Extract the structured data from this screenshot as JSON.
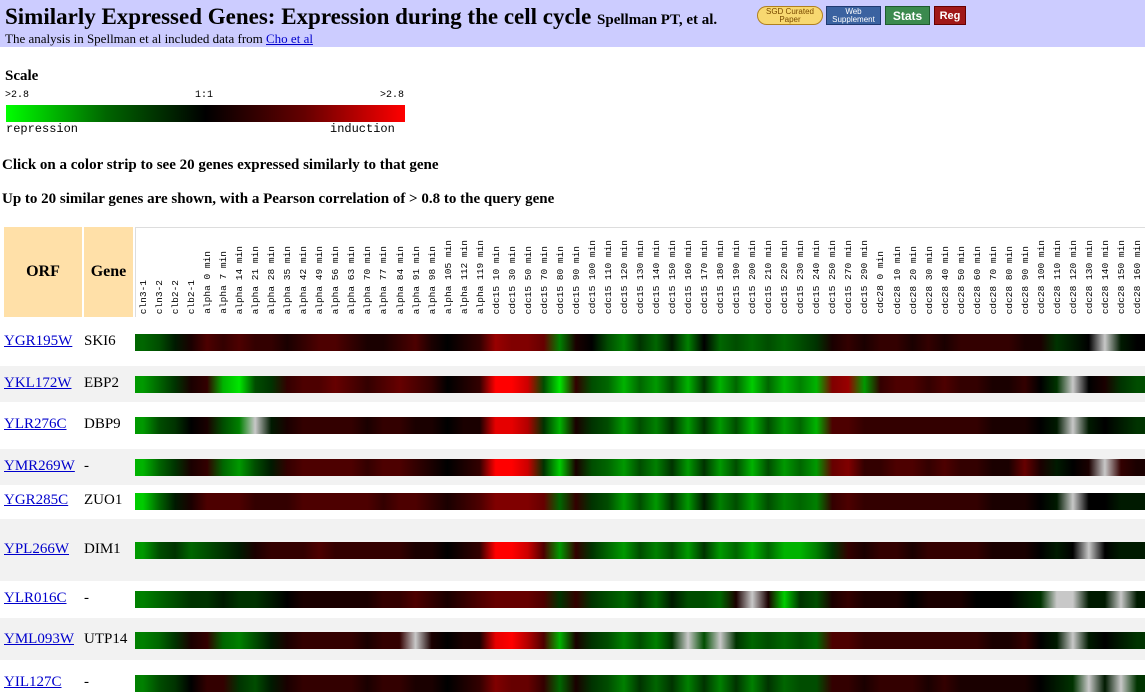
{
  "banner": {
    "title": "Similarly Expressed Genes: Expression during the cell cycle",
    "citation": "Spellman PT, et al.",
    "note_prefix": "The analysis in Spellman et al included data from",
    "note_link": "Cho et al",
    "buttons": {
      "sgd_line1": "SGD Curated",
      "sgd_line2": "Paper",
      "web_line1": "Web",
      "web_line2": "Supplement",
      "stats": "Stats",
      "reg": "Reg"
    }
  },
  "scale": {
    "title": "Scale",
    "left_value": ">2.8",
    "mid_value": "1:1",
    "right_value": ">2.8",
    "left_word": "repression",
    "right_word": "induction",
    "colors": {
      "repression": "#00ff00",
      "neutral": "#000000",
      "induction": "#ff0000"
    }
  },
  "instructions": [
    "Click on a color strip to see 20 genes expressed similarly to that gene",
    "Up to 20 similar genes are shown, with a Pearson correlation of > 0.8 to the query gene"
  ],
  "table": {
    "orf_header": "ORF",
    "gene_header": "Gene",
    "columns": [
      "cln3-1",
      "cln3-2",
      "clb2-2",
      "clb2-1",
      "alpha 0 min",
      "alpha 7 min",
      "alpha 14 min",
      "alpha 21 min",
      "alpha 28 min",
      "alpha 35 min",
      "alpha 42 min",
      "alpha 49 min",
      "alpha 56 min",
      "alpha 63 min",
      "alpha 70 min",
      "alpha 77 min",
      "alpha 84 min",
      "alpha 91 min",
      "alpha 98 min",
      "alpha 105 min",
      "alpha 112 min",
      "alpha 119 min",
      "cdc15 10 min",
      "cdc15 30 min",
      "cdc15 50 min",
      "cdc15 70 min",
      "cdc15 80 min",
      "cdc15 90 min",
      "cdc15 100 min",
      "cdc15 110 min",
      "cdc15 120 min",
      "cdc15 130 min",
      "cdc15 140 min",
      "cdc15 150 min",
      "cdc15 160 min",
      "cdc15 170 min",
      "cdc15 180 min",
      "cdc15 190 min",
      "cdc15 200 min",
      "cdc15 210 min",
      "cdc15 220 min",
      "cdc15 230 min",
      "cdc15 240 min",
      "cdc15 250 min",
      "cdc15 270 min",
      "cdc15 290 min",
      "cdc28 0 min",
      "cdc28 10 min",
      "cdc28 20 min",
      "cdc28 30 min",
      "cdc28 40 min",
      "cdc28 50 min",
      "cdc28 60 min",
      "cdc28 70 min",
      "cdc28 80 min",
      "cdc28 90 min",
      "cdc28 100 min",
      "cdc28 110 min",
      "cdc28 120 min",
      "cdc28 130 min",
      "cdc28 140 min",
      "cdc28 150 min",
      "cdc28 160 min"
    ],
    "rows": [
      {
        "orf": "YGR195W",
        "gene": "SKI6",
        "values": [
          -0.4,
          -0.3,
          -0.1,
          0.1,
          0.3,
          0.2,
          0.3,
          0.2,
          0.2,
          0.1,
          0.2,
          0.3,
          0.3,
          0.2,
          0.1,
          0.1,
          0.2,
          0.3,
          0.1,
          0.0,
          0.1,
          0.2,
          0.6,
          0.5,
          0.5,
          0.4,
          -0.5,
          0.1,
          0.0,
          -0.3,
          -0.5,
          -0.2,
          -0.4,
          -0.1,
          -0.5,
          0.0,
          -0.4,
          -0.3,
          -0.4,
          -0.3,
          -0.4,
          -0.3,
          -0.2,
          0.1,
          0.2,
          0.1,
          0.2,
          0.2,
          0.1,
          0.2,
          0.1,
          0.2,
          0.2,
          0.2,
          0.2,
          0.1,
          0.1,
          -0.2,
          -0.1,
          0.0,
          null,
          -0.1,
          0.0
        ]
      },
      {
        "orf": "YKL172W",
        "gene": "EBP2",
        "values": [
          -0.6,
          -0.4,
          -0.2,
          0.1,
          0.2,
          -0.7,
          -0.9,
          -0.3,
          -0.2,
          0.2,
          0.3,
          0.3,
          0.4,
          0.3,
          0.2,
          0.3,
          0.4,
          0.3,
          0.2,
          0.0,
          0.1,
          0.2,
          1.0,
          1.2,
          0.8,
          -0.3,
          -0.9,
          0.2,
          -0.3,
          -0.4,
          -0.7,
          -0.4,
          -0.6,
          -0.3,
          -0.7,
          -0.2,
          -0.7,
          -0.4,
          -0.8,
          -0.4,
          -0.7,
          -0.5,
          -0.7,
          0.5,
          0.6,
          -0.6,
          0.2,
          0.3,
          0.3,
          0.2,
          0.3,
          0.2,
          0.2,
          0.1,
          0.1,
          0.2,
          0.0,
          -0.2,
          null,
          0.0,
          0.1,
          -0.2,
          -0.3
        ]
      },
      {
        "orf": "YLR276C",
        "gene": "DBP9",
        "values": [
          -0.6,
          -0.3,
          -0.2,
          0.0,
          0.1,
          -0.3,
          -0.5,
          null,
          -0.1,
          0.1,
          0.2,
          0.2,
          0.2,
          0.2,
          0.1,
          0.2,
          0.2,
          0.1,
          0.1,
          0.0,
          0.1,
          0.1,
          0.9,
          0.9,
          0.7,
          -0.2,
          -0.7,
          0.1,
          -0.2,
          -0.3,
          -0.6,
          -0.3,
          -0.5,
          -0.2,
          -0.6,
          -0.2,
          -0.6,
          -0.3,
          -0.7,
          -0.3,
          -0.6,
          -0.4,
          -0.7,
          0.3,
          0.3,
          0.2,
          0.2,
          0.2,
          0.2,
          0.2,
          0.2,
          0.2,
          0.2,
          0.1,
          0.1,
          0.1,
          0.0,
          -0.1,
          null,
          -0.1,
          0.0,
          -0.1,
          -0.2
        ]
      },
      {
        "orf": "YMR269W",
        "gene": "-",
        "values": [
          -0.7,
          -0.4,
          -0.2,
          0.1,
          0.2,
          -0.4,
          -0.6,
          -0.3,
          -0.1,
          0.2,
          0.3,
          0.3,
          0.3,
          0.3,
          0.2,
          0.3,
          0.3,
          0.2,
          0.1,
          0.0,
          0.1,
          0.2,
          1.1,
          1.2,
          0.8,
          -0.2,
          -0.8,
          0.1,
          -0.3,
          -0.4,
          -0.6,
          -0.3,
          -0.5,
          -0.2,
          -0.6,
          -0.2,
          -0.6,
          -0.3,
          -0.7,
          -0.3,
          -0.6,
          -0.4,
          -0.6,
          0.4,
          0.5,
          0.2,
          0.2,
          0.3,
          0.3,
          0.2,
          0.3,
          0.2,
          0.2,
          0.1,
          0.1,
          0.4,
          0.1,
          -0.1,
          0.0,
          0.1,
          null,
          0.2,
          0.1
        ]
      },
      {
        "orf": "YGR285C",
        "gene": "ZUO1",
        "values": [
          -0.8,
          -0.4,
          -0.1,
          0.1,
          0.3,
          0.3,
          0.3,
          0.2,
          0.2,
          0.2,
          0.3,
          0.3,
          0.3,
          0.3,
          0.3,
          0.2,
          0.3,
          0.3,
          0.2,
          0.1,
          0.2,
          0.3,
          0.5,
          0.5,
          0.5,
          0.4,
          -0.4,
          0.2,
          -0.2,
          -0.3,
          -0.6,
          -0.3,
          -0.6,
          -0.2,
          -0.6,
          -0.1,
          -0.5,
          -0.3,
          -0.6,
          -0.3,
          -0.5,
          -0.4,
          -0.5,
          0.2,
          0.3,
          0.2,
          0.2,
          0.2,
          0.2,
          0.2,
          0.2,
          0.2,
          0.2,
          0.1,
          0.1,
          0.1,
          0.0,
          -0.1,
          null,
          0.0,
          0.0,
          -0.1,
          -0.1
        ]
      },
      {
        "orf": "YPL266W",
        "gene": "DIM1",
        "values": [
          -0.6,
          -0.3,
          -0.2,
          -0.4,
          -0.3,
          -0.2,
          -0.1,
          0.1,
          0.2,
          0.2,
          0.2,
          0.3,
          0.2,
          0.2,
          0.2,
          0.2,
          0.2,
          0.1,
          0.1,
          0.0,
          0.1,
          0.2,
          1.0,
          1.1,
          0.8,
          0.3,
          -0.6,
          0.2,
          -0.2,
          -0.4,
          -0.6,
          -0.3,
          -0.5,
          -0.3,
          -0.6,
          -0.2,
          -0.6,
          -0.4,
          -0.7,
          -0.4,
          -0.7,
          -0.7,
          -0.5,
          -0.2,
          0.2,
          0.1,
          0.2,
          0.2,
          0.1,
          0.2,
          0.2,
          0.2,
          0.2,
          0.1,
          0.1,
          0.1,
          0.0,
          -0.1,
          0.0,
          null,
          0.0,
          -0.1,
          -0.1
        ]
      },
      {
        "orf": "YLR016C",
        "gene": "-",
        "values": [
          -0.5,
          -0.4,
          -0.3,
          -0.2,
          -0.2,
          -0.1,
          -0.2,
          -0.2,
          -0.1,
          0.0,
          0.1,
          0.1,
          0.1,
          0.1,
          0.1,
          0.2,
          0.2,
          0.3,
          0.2,
          0.1,
          0.2,
          0.3,
          0.4,
          0.4,
          0.4,
          0.3,
          -0.2,
          0.2,
          -0.2,
          -0.3,
          -0.4,
          -0.2,
          -0.4,
          -0.1,
          -0.3,
          -0.3,
          -0.4,
          0.1,
          null,
          0.1,
          -0.8,
          -0.2,
          -0.3,
          0.1,
          0.2,
          0.1,
          0.1,
          0.1,
          0.0,
          0.1,
          0.1,
          0.1,
          0.0,
          0.0,
          0.0,
          -0.1,
          -0.2,
          null,
          null,
          -0.1,
          -0.1,
          null,
          -0.1
        ]
      },
      {
        "orf": "YML093W",
        "gene": "UTP14",
        "values": [
          -0.5,
          -0.4,
          -0.2,
          0.1,
          0.2,
          -0.4,
          -0.5,
          -0.3,
          -0.1,
          0.1,
          0.2,
          0.2,
          0.2,
          0.2,
          0.1,
          0.2,
          0.2,
          null,
          0.1,
          0.0,
          0.1,
          0.1,
          0.9,
          1.0,
          0.7,
          0.3,
          -0.7,
          0.1,
          -0.2,
          -0.3,
          -0.5,
          -0.3,
          -0.5,
          -0.2,
          null,
          -0.3,
          null,
          -0.2,
          -0.4,
          -0.3,
          -0.4,
          -0.3,
          -0.4,
          0.3,
          0.3,
          0.2,
          0.2,
          0.2,
          0.2,
          0.2,
          0.2,
          0.2,
          0.2,
          0.1,
          0.1,
          0.2,
          0.0,
          -0.1,
          null,
          -0.1,
          0.0,
          -0.1,
          -0.2
        ]
      },
      {
        "orf": "YIL127C",
        "gene": "-",
        "values": [
          -0.5,
          -0.3,
          -0.2,
          0.0,
          0.2,
          0.2,
          -0.2,
          -0.3,
          -0.1,
          0.1,
          0.2,
          0.2,
          0.2,
          0.2,
          0.1,
          0.2,
          0.2,
          0.1,
          0.1,
          0.0,
          0.1,
          0.2,
          0.5,
          0.4,
          0.4,
          0.2,
          -0.4,
          0.1,
          -0.2,
          -0.3,
          -0.5,
          -0.2,
          -0.4,
          -0.2,
          -0.5,
          -0.2,
          -0.5,
          -0.2,
          -0.5,
          -0.2,
          -0.4,
          -0.3,
          -0.3,
          0.2,
          0.2,
          0.1,
          0.2,
          0.2,
          0.2,
          0.1,
          0.2,
          0.1,
          0.1,
          0.1,
          0.1,
          0.1,
          0.0,
          -0.1,
          -0.2,
          null,
          -0.1,
          null,
          -0.2
        ]
      }
    ]
  }
}
